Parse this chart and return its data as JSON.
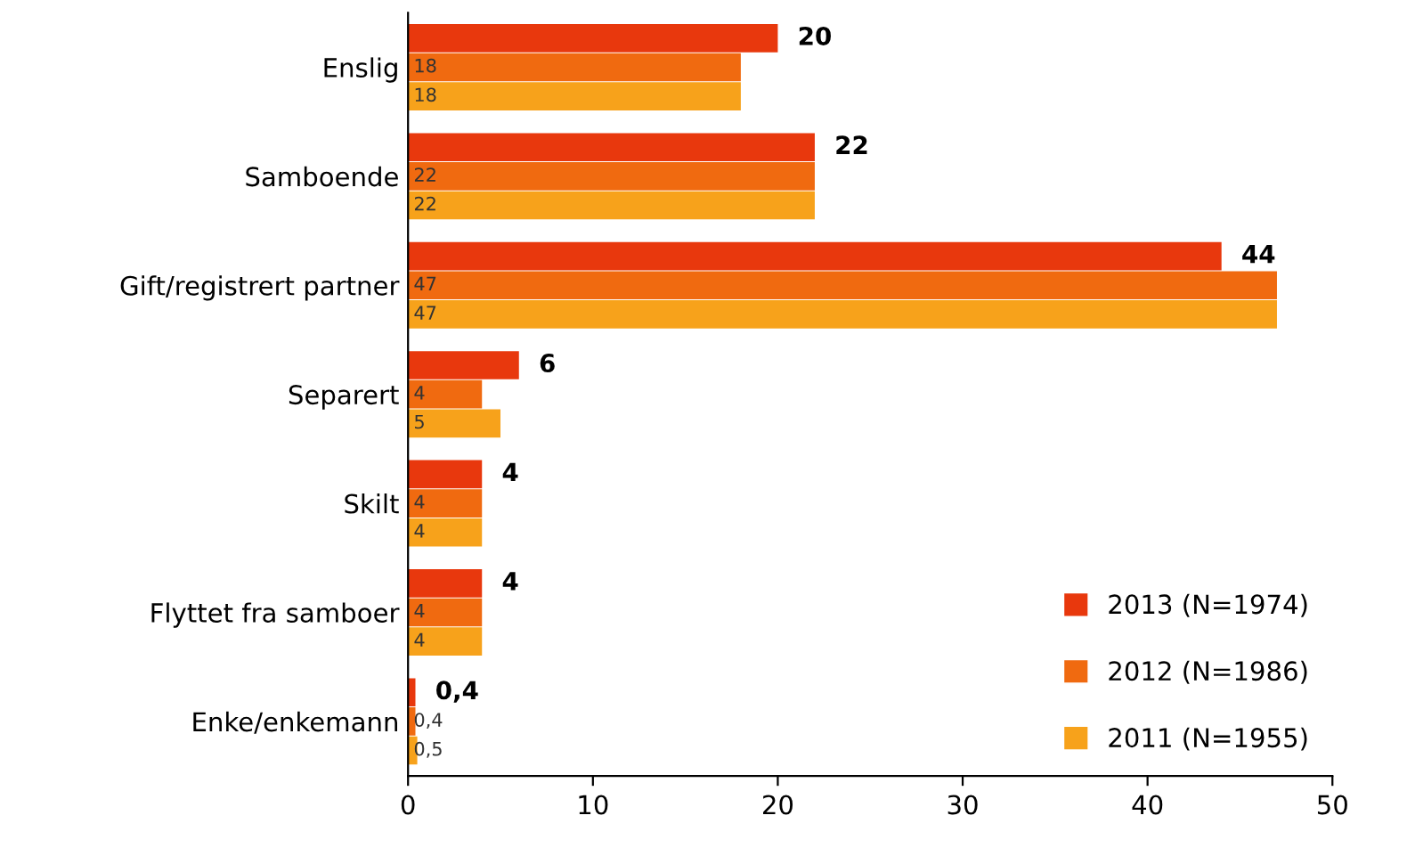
{
  "chart_data": {
    "type": "bar",
    "orientation": "horizontal",
    "categories": [
      "Enslig",
      "Samboende",
      "Gift/registrert partner",
      "Separert",
      "Skilt",
      "Flyttet fra samboer",
      "Enke/enkemann"
    ],
    "series": [
      {
        "name": "2013 (N=1974)",
        "color": "#e8380d",
        "values": [
          20,
          22,
          44,
          6,
          4,
          4,
          0.4
        ],
        "value_labels": [
          "20",
          "22",
          "44",
          "6",
          "4",
          "4",
          "0,4"
        ]
      },
      {
        "name": "2012 (N=1986)",
        "color": "#f06a10",
        "values": [
          18,
          22,
          47,
          4,
          4,
          4,
          0.4
        ],
        "value_labels": [
          "18",
          "22",
          "47",
          "4",
          "4",
          "4",
          "0,4"
        ]
      },
      {
        "name": "2011 (N=1955)",
        "color": "#f7a21b",
        "values": [
          18,
          22,
          47,
          5,
          4,
          4,
          0.5
        ],
        "value_labels": [
          "18",
          "22",
          "47",
          "5",
          "4",
          "4",
          "0,5"
        ]
      }
    ],
    "xlim": [
      0,
      50
    ],
    "xticks": [
      0,
      10,
      20,
      30,
      40,
      50
    ],
    "grid": false,
    "legend": "bottom right"
  }
}
